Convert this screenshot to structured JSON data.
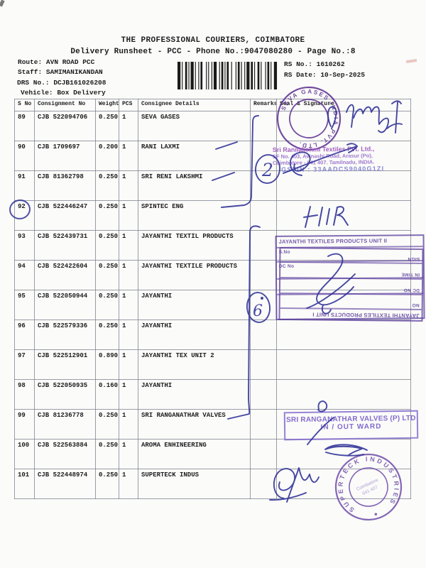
{
  "header": {
    "title": "THE PROFESSIONAL COURIERS, COIMBATORE",
    "subtitle": "Delivery Runsheet - PCC - Phone No.:9047080280 - Page No.:8",
    "route_label": "Route:",
    "route_value": "AVN ROAD PCC",
    "staff_label": "Staff:",
    "staff_value": "SAMIMANIKANDAN",
    "drs_label": "DRS No.:",
    "drs_value": "DCJB161026208",
    "vehicle_label": "Vehicle:",
    "vehicle_value": "Box Delivery",
    "rs_no_label": "RS No.:",
    "rs_no_value": "1610262",
    "rs_date_label": "RS Date:",
    "rs_date_value": "10-Sep-2025"
  },
  "table": {
    "columns": [
      "S No",
      "Consignment No",
      "Weight",
      "PCS",
      "Consignee Details",
      "Remarks",
      "Seal & Signature"
    ],
    "rows": [
      {
        "sno": "89",
        "consignment": "CJB 522094706",
        "weight": "0.250",
        "pcs": "1",
        "consignee": "SEVA GASES"
      },
      {
        "sno": "90",
        "consignment": "CJB 1709697",
        "weight": "0.200",
        "pcs": "1",
        "consignee": "RANI LAXMI"
      },
      {
        "sno": "91",
        "consignment": "CJB 81362798",
        "weight": "0.250",
        "pcs": "1",
        "consignee": "SRI RENI LAKSHMI"
      },
      {
        "sno": "92",
        "consignment": "CJB 522446247",
        "weight": "0.250",
        "pcs": "1",
        "consignee": "SPINTEC ENG"
      },
      {
        "sno": "93",
        "consignment": "CJB 522439731",
        "weight": "0.250",
        "pcs": "1",
        "consignee": "JAYANTHI TEXTIL PRODUCTS"
      },
      {
        "sno": "94",
        "consignment": "CJB 522422604",
        "weight": "0.250",
        "pcs": "1",
        "consignee": "JAYANTHI TEXTILE PRODUCTS"
      },
      {
        "sno": "95",
        "consignment": "CJB 522050944",
        "weight": "0.250",
        "pcs": "1",
        "consignee": "JAYANTHI"
      },
      {
        "sno": "96",
        "consignment": "CJB 522579336",
        "weight": "0.250",
        "pcs": "1",
        "consignee": "JAYANTHI"
      },
      {
        "sno": "97",
        "consignment": "CJB 522512901",
        "weight": "0.890",
        "pcs": "1",
        "consignee": "JAYANTHI TEX UNIT 2"
      },
      {
        "sno": "98",
        "consignment": "CJB 522050935",
        "weight": "0.160",
        "pcs": "1",
        "consignee": "JAYANTHI"
      },
      {
        "sno": "99",
        "consignment": "CJB 81236778",
        "weight": "0.250",
        "pcs": "1",
        "consignee": "SRI RANGANATHAR VALVES"
      },
      {
        "sno": "100",
        "consignment": "CJB 522563884",
        "weight": "0.250",
        "pcs": "1",
        "consignee": "AROMA ENHINEERING"
      },
      {
        "sno": "101",
        "consignment": "CJB 522448974",
        "weight": "0.250",
        "pcs": "1",
        "consignee": "SUPERTECK INDUS"
      }
    ]
  },
  "stamps": {
    "seva": {
      "ring_text": "SEVA GASES INDIA PVT. LTD.",
      "color": "#5b2d91"
    },
    "textiles": {
      "line1": "Sri Ranilakshmi Textiles Pvt. Ltd.,",
      "line2": "SF No. 403, Avinashi Road, Arasur (Po),",
      "line3": "Coimbatore - 641 407. Tamilnadu, INDIA.",
      "line4": "GSTIN : 33AADCS9040G1ZI"
    },
    "jayanthi_unit2": {
      "title": "JAYANTHI TEXTILES PRODUCTS UNIT II",
      "fields": [
        "S.No",
        "DC No"
      ]
    },
    "jayanthi_unit1": {
      "title": "JAYANTHI TEXTILES PRODUCTS UNIT I",
      "fields": [
        "SIGN",
        "IN TIME",
        "DC NO",
        "NO"
      ]
    },
    "ranganathar": {
      "line1": "SRI RANGANATHAR VALVES (P) LTD",
      "line2": "IN / OUT WARD"
    },
    "superteck": {
      "ring_text": "SUPERTECK INDUSTRIES",
      "center1": "Coimbatore",
      "center2": "641 407"
    },
    "accent_purple": "#6b3fa0"
  },
  "annotations": {
    "bracket1_count": "2",
    "bracket2_count": "6",
    "initials": "HIR",
    "circled_sno": "92",
    "ink_color": "#2d2f96"
  }
}
